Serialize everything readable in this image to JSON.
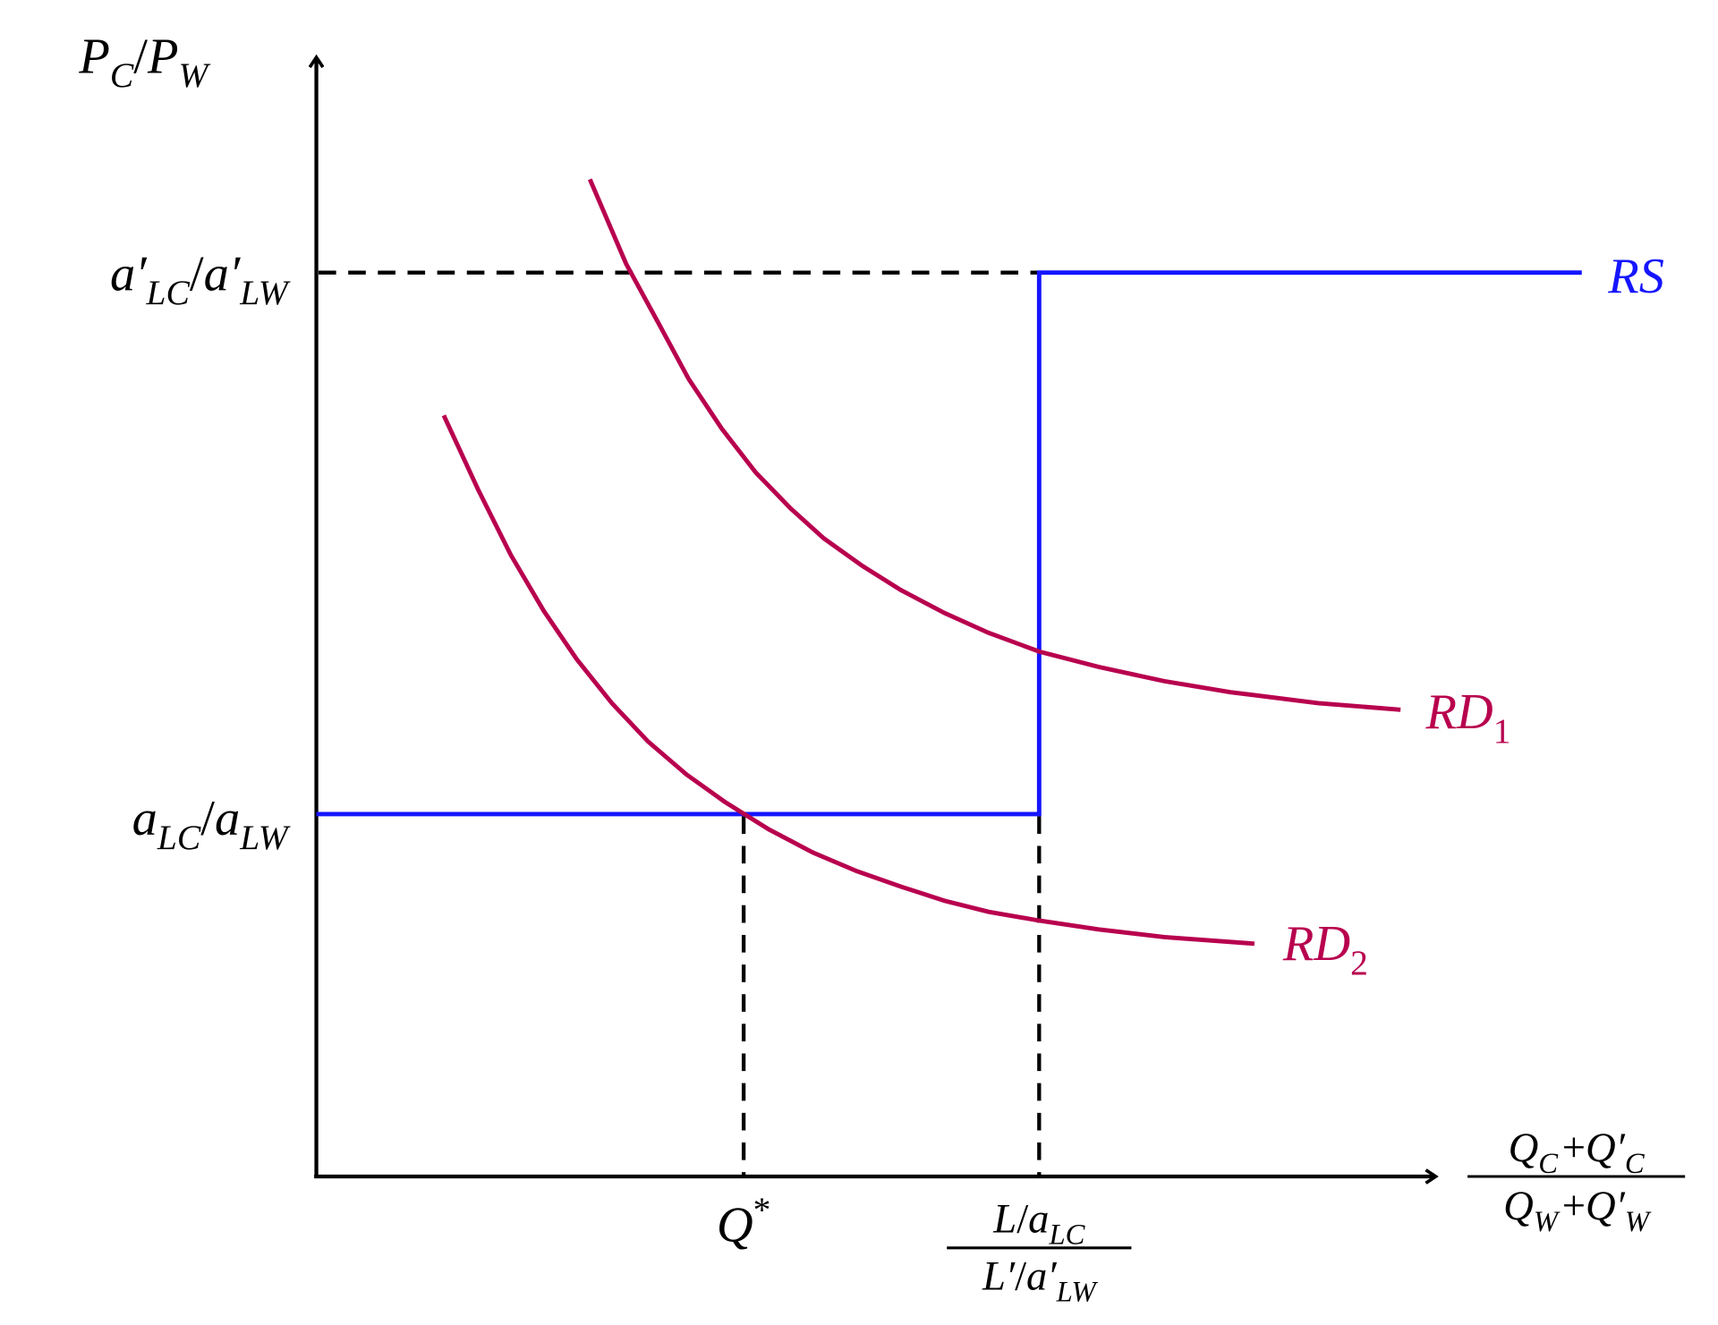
{
  "y_axis_label": [
    {
      "t": "P"
    },
    {
      "sub": "C"
    },
    {
      "o": "/"
    },
    {
      "t": "P"
    },
    {
      "sub": "W"
    }
  ],
  "y_labels": {
    "upper": [
      {
        "t": "a′"
      },
      {
        "sub": "LC"
      },
      {
        "o": "/"
      },
      {
        "t": "a′"
      },
      {
        "sub": "LW"
      }
    ],
    "lower": [
      {
        "t": "a"
      },
      {
        "sub": "LC"
      },
      {
        "o": "/"
      },
      {
        "t": "a"
      },
      {
        "sub": "LW"
      }
    ]
  },
  "x_labels": {
    "q_star": [
      {
        "t": "Q"
      },
      {
        "sup": "*"
      }
    ],
    "endowment": {
      "numerator": [
        {
          "t": "L"
        },
        {
          "o": "/"
        },
        {
          "t": "a"
        },
        {
          "sub": "LC"
        }
      ],
      "denominator": [
        {
          "t": "L′"
        },
        {
          "o": "/"
        },
        {
          "t": "a′"
        },
        {
          "sub": "LW"
        }
      ]
    }
  },
  "x_axis_label": {
    "numerator": [
      {
        "t": "Q"
      },
      {
        "sub": "C"
      },
      {
        "o": "+"
      },
      {
        "t": "Q′"
      },
      {
        "sub": "C"
      }
    ],
    "denominator": [
      {
        "t": "Q"
      },
      {
        "sub": "W"
      },
      {
        "o": "+"
      },
      {
        "t": "Q′"
      },
      {
        "sub": "W"
      }
    ]
  },
  "curves": {
    "rs": [
      {
        "t": "RS"
      }
    ],
    "rd1": [
      {
        "t": "RD"
      },
      {
        "sub": "1"
      }
    ],
    "rd2": [
      {
        "t": "RD"
      },
      {
        "sub": "2"
      }
    ]
  }
}
